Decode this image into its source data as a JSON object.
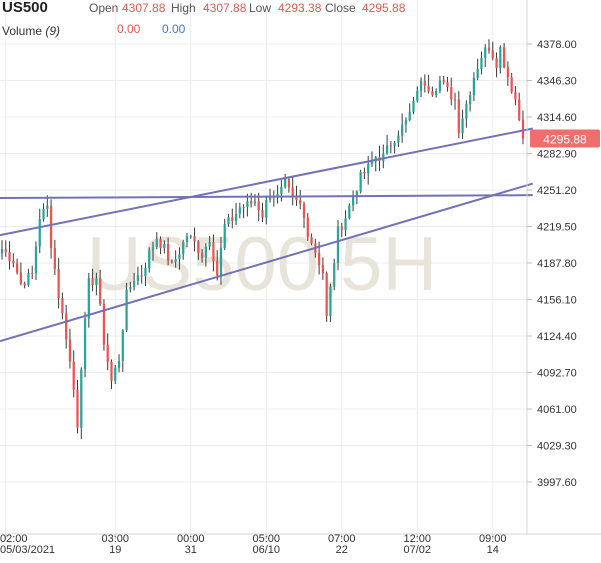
{
  "header": {
    "symbol": "US500",
    "open_label": "Open",
    "open_value": "4307.88",
    "high_label": "High",
    "high_value": "4307.88",
    "low_label": "Low",
    "low_value": "4293.38",
    "close_label": "Close",
    "close_value": "4295.88",
    "volume_label": "Volume",
    "volume_period": "(9)",
    "volume_value_1": "0.00",
    "volume_value_2": "0.00"
  },
  "watermark": "US500,5H",
  "colors": {
    "up": "#26a69a",
    "down": "#ef5350",
    "trendline": "#7272b4",
    "price_badge": "#f26d6d",
    "watermark": "#e9e4da"
  },
  "chart_data": {
    "type": "candlestick",
    "title": "",
    "xlabel": "",
    "ylabel": "",
    "ylim": [
      3970,
      4395
    ],
    "y_ticks": [
      "4378.00",
      "4346.30",
      "4314.60",
      "4282.90",
      "4251.20",
      "4219.50",
      "4187.80",
      "4156.10",
      "4124.40",
      "4092.70",
      "4061.00",
      "4029.30",
      "3997.60"
    ],
    "x_ticks": [
      {
        "top": "02:00",
        "bottom": "05/03/2021",
        "bar": 1
      },
      {
        "top": "03:00",
        "bottom": "19",
        "bar": 30
      },
      {
        "top": "00:00",
        "bottom": "31",
        "bar": 50
      },
      {
        "top": "05:00",
        "bottom": "06/10",
        "bar": 70
      },
      {
        "top": "07:00",
        "bottom": "22",
        "bar": 90
      },
      {
        "top": "12:00",
        "bottom": "07/02",
        "bar": 110
      },
      {
        "top": "09:00",
        "bottom": "14",
        "bar": 130
      }
    ],
    "n_bars": 139,
    "anchors": [
      [
        0,
        4200
      ],
      [
        3,
        4190
      ],
      [
        5,
        4170
      ],
      [
        8,
        4178
      ],
      [
        10,
        4228
      ],
      [
        12,
        4236
      ],
      [
        13,
        4205
      ],
      [
        15,
        4160
      ],
      [
        17,
        4125
      ],
      [
        19,
        4078
      ],
      [
        20,
        4048
      ],
      [
        21,
        4100
      ],
      [
        23,
        4170
      ],
      [
        25,
        4175
      ],
      [
        27,
        4120
      ],
      [
        29,
        4085
      ],
      [
        31,
        4105
      ],
      [
        33,
        4160
      ],
      [
        35,
        4175
      ],
      [
        37,
        4178
      ],
      [
        39,
        4196
      ],
      [
        41,
        4210
      ],
      [
        43,
        4200
      ],
      [
        45,
        4185
      ],
      [
        47,
        4198
      ],
      [
        49,
        4212
      ],
      [
        51,
        4205
      ],
      [
        53,
        4195
      ],
      [
        55,
        4210
      ],
      [
        57,
        4178
      ],
      [
        59,
        4220
      ],
      [
        61,
        4226
      ],
      [
        63,
        4236
      ],
      [
        65,
        4238
      ],
      [
        67,
        4242
      ],
      [
        69,
        4230
      ],
      [
        71,
        4250
      ],
      [
        73,
        4245
      ],
      [
        75,
        4256
      ],
      [
        77,
        4242
      ],
      [
        79,
        4238
      ],
      [
        81,
        4215
      ],
      [
        83,
        4198
      ],
      [
        85,
        4180
      ],
      [
        86,
        4140
      ],
      [
        87,
        4165
      ],
      [
        89,
        4215
      ],
      [
        91,
        4228
      ],
      [
        93,
        4246
      ],
      [
        95,
        4262
      ],
      [
        97,
        4270
      ],
      [
        99,
        4280
      ],
      [
        101,
        4280
      ],
      [
        103,
        4292
      ],
      [
        105,
        4302
      ],
      [
        107,
        4310
      ],
      [
        109,
        4325
      ],
      [
        110,
        4340
      ],
      [
        112,
        4345
      ],
      [
        114,
        4338
      ],
      [
        116,
        4346
      ],
      [
        118,
        4337
      ],
      [
        120,
        4330
      ],
      [
        121,
        4305
      ],
      [
        123,
        4326
      ],
      [
        125,
        4350
      ],
      [
        127,
        4368
      ],
      [
        129,
        4376
      ],
      [
        131,
        4362
      ],
      [
        132,
        4374
      ],
      [
        134,
        4350
      ],
      [
        136,
        4330
      ],
      [
        138,
        4296
      ]
    ],
    "current_price": 4295.88,
    "trend_lines": [
      {
        "x1": 0,
        "y1": 4212.0,
        "x2": 139,
        "y2": 4304.6
      },
      {
        "x1": 0,
        "y1": 4119.9,
        "x2": 139,
        "y2": 4256.8
      },
      {
        "x1": 0,
        "y1": 4244.2,
        "x2": 139,
        "y2": 4246.7
      }
    ]
  }
}
